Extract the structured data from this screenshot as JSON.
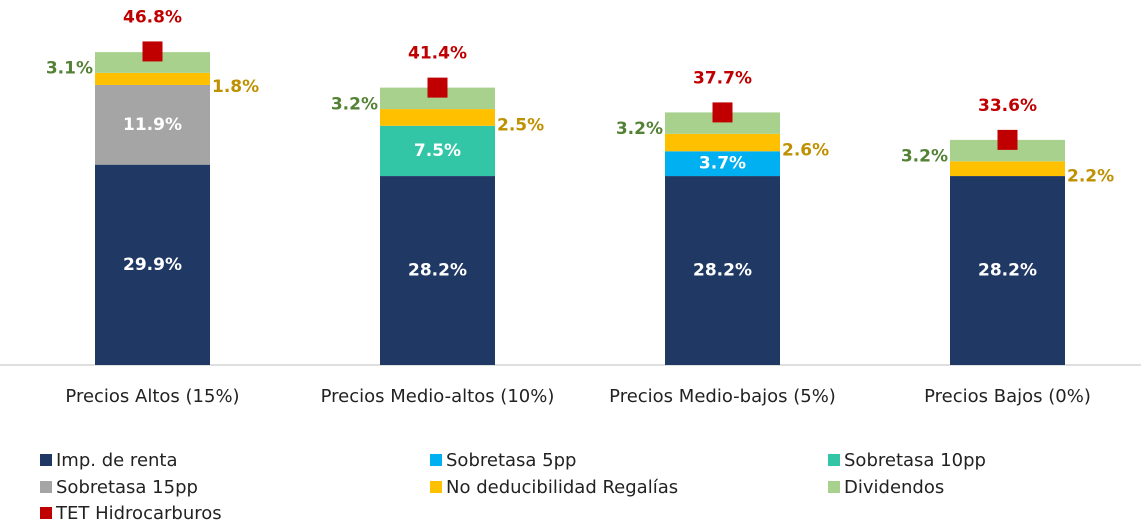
{
  "chart_data": {
    "type": "stacked_bar",
    "categories": [
      "Precios Altos (15%)",
      "Precios Medio-altos (10%)",
      "Precios Medio-bajos (5%)",
      "Precios Bajos (0%)"
    ],
    "series": [
      {
        "name": "Imp. de renta",
        "color": "#203864",
        "values": [
          29.9,
          28.2,
          28.2,
          28.2
        ],
        "value_labels": [
          "29.9%",
          "28.2%",
          "28.2%",
          "28.2%"
        ],
        "label_position": "inside",
        "label_color": "#ffffff"
      },
      {
        "name": "Sobretasa 5pp",
        "color": "#00b0f0",
        "values": [
          null,
          null,
          3.7,
          null
        ],
        "value_labels": [
          null,
          null,
          "3.7%",
          null
        ],
        "label_position": "inside",
        "label_color": "#ffffff"
      },
      {
        "name": "Sobretasa 10pp",
        "color": "#33c6a6",
        "values": [
          null,
          7.5,
          null,
          null
        ],
        "value_labels": [
          null,
          "7.5%",
          null,
          null
        ],
        "label_position": "inside",
        "label_color": "#ffffff"
      },
      {
        "name": "Sobretasa 15pp",
        "color": "#a5a5a5",
        "values": [
          11.9,
          null,
          null,
          null
        ],
        "value_labels": [
          "11.9%",
          null,
          null,
          null
        ],
        "label_position": "inside",
        "label_color": "#ffffff"
      },
      {
        "name": "No deducibilidad Regalías",
        "color": "#ffc000",
        "values": [
          1.8,
          2.5,
          2.6,
          2.2
        ],
        "value_labels": [
          "1.8%",
          "2.5%",
          "2.6%",
          "2.2%"
        ],
        "label_position": "right",
        "label_color": "#bf9000"
      },
      {
        "name": "Dividendos",
        "color": "#a9d18e",
        "values": [
          3.1,
          3.2,
          3.2,
          3.2
        ],
        "value_labels": [
          "3.1%",
          "3.2%",
          "3.2%",
          "3.2%"
        ],
        "label_position": "left",
        "label_color": "#548235"
      },
      {
        "name": "TET Hidrocarburos",
        "color": "#c00000",
        "values": [
          46.8,
          41.4,
          37.7,
          33.6
        ],
        "value_labels": [
          "46.8%",
          "41.4%",
          "37.7%",
          "33.6%"
        ],
        "marker": "square",
        "label_position": "above",
        "label_color": "#c00000"
      }
    ]
  }
}
